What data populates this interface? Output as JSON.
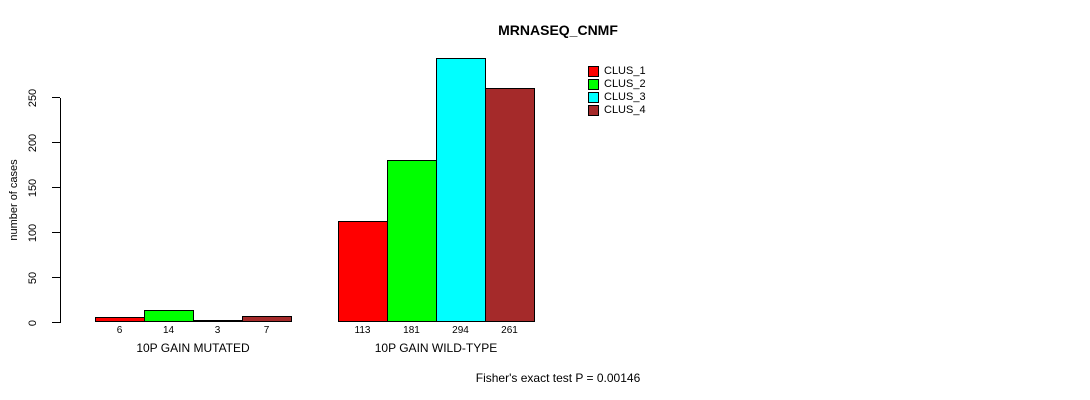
{
  "title": "MRNASEQ_CNMF",
  "footer": "Fisher's exact test P = 0.00146",
  "colors": {
    "clus_1": "#FF0000",
    "clus_2": "#00FF00",
    "clus_3": "#00FFFF",
    "clus_4": "#A52A2A"
  },
  "legend": {
    "position": "top-right",
    "items": [
      {
        "label": "CLUS_1",
        "color": "#FF0000"
      },
      {
        "label": "CLUS_2",
        "color": "#00FF00"
      },
      {
        "label": "CLUS_3",
        "color": "#00FFFF"
      },
      {
        "label": "CLUS_4",
        "color": "#A52A2A"
      }
    ]
  },
  "chart_data": {
    "type": "bar",
    "title": "MRNASEQ_CNMF",
    "xlabel": "",
    "ylabel": "number of cases",
    "categories": [
      "10P GAIN MUTATED",
      "10P GAIN WILD-TYPE"
    ],
    "series": [
      {
        "name": "CLUS_1",
        "color": "#FF0000",
        "values": [
          6,
          113
        ]
      },
      {
        "name": "CLUS_2",
        "color": "#00FF00",
        "values": [
          14,
          181
        ]
      },
      {
        "name": "CLUS_3",
        "color": "#00FFFF",
        "values": [
          3,
          294
        ]
      },
      {
        "name": "CLUS_4",
        "color": "#A52A2A",
        "values": [
          7,
          261
        ]
      }
    ],
    "bar_value_labels": [
      [
        "6",
        "14",
        "3",
        "7"
      ],
      [
        "113",
        "181",
        "294",
        "261"
      ]
    ],
    "yticks": [
      0,
      50,
      100,
      150,
      200,
      250
    ],
    "ylim": [
      0,
      294
    ],
    "grid": false,
    "legend_position": "top-right",
    "annotation": "Fisher's exact test P = 0.00146"
  }
}
